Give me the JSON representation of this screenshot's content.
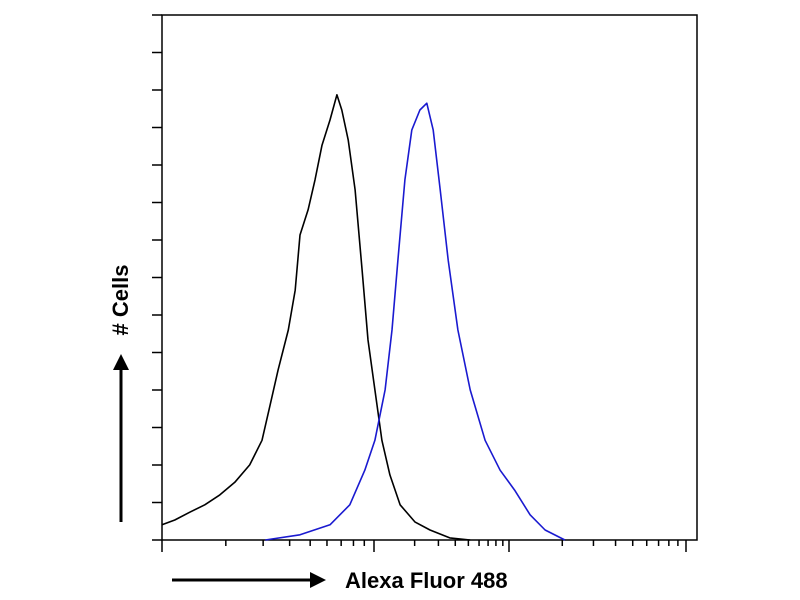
{
  "chart_data": {
    "type": "line",
    "x_label": "Alexa Fluor 488",
    "y_label": "# Cells",
    "xlim": [
      0,
      100
    ],
    "ylim": [
      0,
      100
    ],
    "series": [
      {
        "color": "#000000",
        "x": [
          0,
          2.4,
          5.2,
          8.0,
          10.8,
          13.6,
          16.4,
          18.7,
          20.2,
          21.7,
          23.6,
          24.9,
          25.8,
          27.3,
          28.6,
          29.9,
          31.4,
          32.7,
          33.6,
          34.8,
          36.1,
          37.4,
          38.5,
          39.8,
          41.1,
          42.6,
          44.5,
          47.3,
          50.1,
          53.8,
          57.6
        ],
        "values": [
          2.9,
          3.8,
          5.3,
          6.7,
          8.6,
          11.0,
          14.3,
          19.0,
          25.7,
          32.4,
          40.0,
          47.6,
          58.1,
          62.9,
          68.6,
          75.2,
          80.0,
          84.8,
          81.9,
          76.2,
          66.7,
          51.4,
          38.1,
          28.6,
          19.0,
          12.4,
          6.7,
          3.4,
          1.9,
          0.4,
          0
        ]
      },
      {
        "color": "#1a1ad0",
        "x": [
          19.3,
          25.8,
          31.4,
          35.1,
          37.9,
          39.8,
          41.7,
          43.0,
          44.1,
          45.4,
          46.7,
          48.2,
          49.5,
          50.7,
          52.0,
          53.5,
          55.3,
          57.6,
          60.4,
          63.2,
          65.9,
          68.8,
          71.6,
          75.3
        ],
        "values": [
          0,
          1.0,
          2.9,
          6.7,
          13.3,
          19.0,
          28.6,
          40.0,
          53.3,
          68.6,
          78.1,
          81.9,
          83.2,
          78.1,
          66.7,
          53.3,
          40.0,
          28.6,
          19.0,
          13.3,
          9.5,
          4.8,
          1.9,
          0
        ]
      }
    ]
  }
}
